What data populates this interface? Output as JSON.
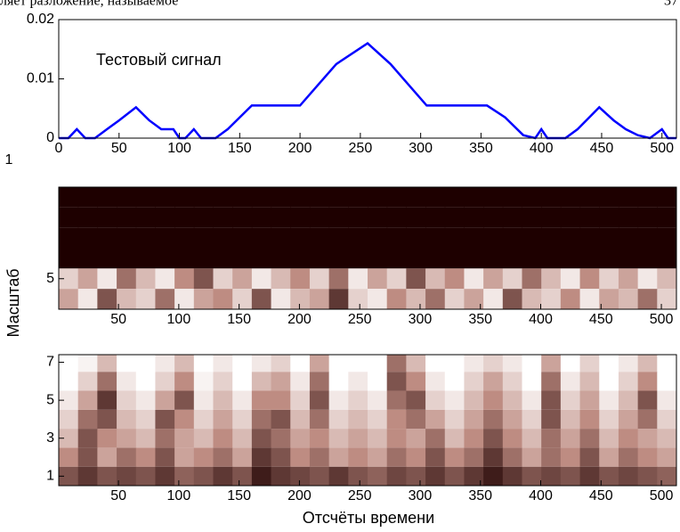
{
  "header": {
    "text": "ляет разложение, называемое",
    "page": "37"
  },
  "figure": {
    "ylabel": "Масштаб",
    "xlabel": "Отсчёты времени",
    "stray_label": "1"
  },
  "chart_data": [
    {
      "type": "line",
      "annotation": "Тестовый сигнал",
      "xlim": [
        0,
        512
      ],
      "ylim": [
        0,
        0.02
      ],
      "xticks": [
        0,
        50,
        100,
        150,
        200,
        250,
        300,
        350,
        400,
        450,
        500
      ],
      "yticks": [
        0,
        0.01,
        0.02
      ],
      "series": [
        {
          "color": "#0000ff",
          "x": [
            0,
            8,
            15,
            22,
            30,
            40,
            50,
            64,
            75,
            85,
            95,
            100,
            105,
            112,
            118,
            125,
            130,
            140,
            160,
            200,
            215,
            230,
            256,
            275,
            290,
            305,
            330,
            355,
            370,
            385,
            395,
            400,
            405,
            412,
            420,
            430,
            448,
            460,
            470,
            480,
            490,
            500,
            505,
            512
          ],
          "values": [
            0,
            0,
            0.0015,
            0,
            0,
            0.0015,
            0.003,
            0.0052,
            0.003,
            0.0015,
            0.0015,
            0,
            0,
            0.0015,
            0,
            0,
            0,
            0.0015,
            0.0055,
            0.0055,
            0.009,
            0.0125,
            0.016,
            0.0125,
            0.009,
            0.0055,
            0.0055,
            0.0055,
            0.0035,
            0.0005,
            0,
            0.0015,
            0,
            0,
            0,
            0.0015,
            0.0052,
            0.003,
            0.0015,
            0.0005,
            0,
            0.0015,
            0,
            0
          ]
        }
      ]
    },
    {
      "type": "heatmap",
      "xlim": [
        0.5,
        512.5
      ],
      "ylim": [
        0.5,
        6.5
      ],
      "y_reversed": true,
      "xticks": [
        50,
        100,
        150,
        200,
        250,
        300,
        350,
        400,
        450,
        500
      ],
      "yticks": [
        5
      ],
      "y": [
        1,
        2,
        3,
        4,
        5,
        6
      ],
      "z": [
        [
          0,
          0,
          0,
          0,
          0,
          0,
          0,
          0,
          0,
          0,
          0,
          0,
          0,
          0,
          0,
          0,
          0,
          0,
          0,
          0,
          0,
          0,
          0,
          0,
          0,
          0,
          0,
          0,
          0,
          0,
          0,
          0
        ],
        [
          0,
          0,
          0,
          0,
          0,
          0,
          0,
          0,
          0,
          0,
          0,
          0,
          0,
          0,
          0,
          0,
          0,
          0,
          0,
          0,
          0,
          0,
          0,
          0,
          0,
          0,
          0,
          0,
          0,
          0,
          0,
          0
        ],
        [
          0,
          0,
          0,
          0,
          0,
          0,
          0,
          0,
          0,
          0,
          0,
          0,
          0,
          0,
          0,
          0,
          0,
          0,
          0,
          0,
          0,
          0,
          0,
          0,
          0,
          0,
          0,
          0,
          0,
          0,
          0,
          0
        ],
        [
          0,
          0,
          0,
          0,
          0,
          0,
          0,
          0,
          0,
          0,
          0,
          0,
          0,
          0,
          0,
          0,
          0,
          0,
          0,
          0,
          0,
          0,
          0,
          0,
          0,
          0,
          0,
          0,
          0,
          0,
          0,
          0
        ],
        [
          0.8,
          0.6,
          0.9,
          0.4,
          0.7,
          0.9,
          0.5,
          0.3,
          0.8,
          0.6,
          0.9,
          0.7,
          0.5,
          0.8,
          0.4,
          0.9,
          0.6,
          0.8,
          0.3,
          0.7,
          0.5,
          0.9,
          0.6,
          0.8,
          0.4,
          0.7,
          0.9,
          0.5,
          0.8,
          0.6,
          0.9,
          0.7
        ],
        [
          0.6,
          0.9,
          0.3,
          0.7,
          0.8,
          0.4,
          0.9,
          0.6,
          0.5,
          0.8,
          0.3,
          0.9,
          0.7,
          0.6,
          0.2,
          0.8,
          0.9,
          0.5,
          0.7,
          0.4,
          0.8,
          0.6,
          0.9,
          0.3,
          0.7,
          0.8,
          0.5,
          0.9,
          0.6,
          0.7,
          0.4,
          0.8
        ]
      ]
    },
    {
      "type": "heatmap",
      "xlim": [
        0.5,
        512.5
      ],
      "ylim": [
        0.5,
        7.4
      ],
      "y_reversed": false,
      "xticks": [
        50,
        100,
        150,
        200,
        250,
        300,
        350,
        400,
        450,
        500
      ],
      "yticks": [
        1,
        3,
        5,
        7
      ],
      "y": [
        1,
        2,
        3,
        4,
        5,
        6,
        7
      ],
      "z": [
        [
          0.3,
          0.2,
          0.3,
          0.25,
          0.3,
          0.2,
          0.35,
          0.3,
          0.2,
          0.3,
          0.1,
          0.2,
          0.25,
          0.3,
          0.2,
          0.3,
          0.35,
          0.25,
          0.3,
          0.2,
          0.3,
          0.2,
          0.1,
          0.2,
          0.3,
          0.25,
          0.3,
          0.2,
          0.3,
          0.25,
          0.3,
          0.35
        ],
        [
          0.5,
          0.3,
          0.6,
          0.4,
          0.5,
          0.3,
          0.6,
          0.5,
          0.4,
          0.6,
          0.2,
          0.3,
          0.5,
          0.4,
          0.6,
          0.5,
          0.6,
          0.4,
          0.5,
          0.3,
          0.5,
          0.4,
          0.2,
          0.4,
          0.6,
          0.4,
          0.5,
          0.3,
          0.6,
          0.4,
          0.5,
          0.6
        ],
        [
          0.7,
          0.3,
          0.5,
          0.6,
          0.7,
          0.4,
          0.6,
          0.7,
          0.5,
          0.7,
          0.3,
          0.4,
          0.6,
          0.5,
          0.7,
          0.6,
          0.7,
          0.5,
          0.6,
          0.4,
          0.7,
          0.5,
          0.3,
          0.5,
          0.7,
          0.4,
          0.6,
          0.4,
          0.7,
          0.5,
          0.6,
          0.7
        ],
        [
          0.8,
          0.4,
          0.3,
          0.7,
          0.8,
          0.3,
          0.5,
          0.8,
          0.6,
          0.8,
          0.4,
          0.3,
          0.7,
          0.4,
          0.8,
          0.7,
          0.8,
          0.5,
          0.4,
          0.6,
          0.8,
          0.6,
          0.4,
          0.6,
          0.8,
          0.3,
          0.7,
          0.5,
          0.8,
          0.6,
          0.4,
          0.8
        ],
        [
          0.9,
          0.6,
          0.2,
          0.8,
          0.9,
          0.6,
          0.3,
          0.9,
          0.7,
          0.9,
          0.5,
          0.5,
          0.8,
          0.3,
          0.9,
          0.8,
          0.9,
          0.4,
          0.3,
          0.8,
          0.9,
          0.7,
          0.5,
          0.7,
          0.9,
          0.3,
          0.8,
          0.6,
          0.9,
          0.7,
          0.3,
          0.9
        ],
        [
          1,
          0.8,
          0.4,
          0.9,
          1,
          0.8,
          0.5,
          0.95,
          0.8,
          1,
          0.7,
          0.6,
          0.9,
          0.4,
          1,
          0.9,
          1,
          0.3,
          0.5,
          0.9,
          1,
          0.8,
          0.6,
          0.8,
          1,
          0.4,
          0.9,
          0.7,
          1,
          0.8,
          0.5,
          1
        ],
        [
          1,
          0.95,
          0.7,
          1,
          1,
          0.9,
          0.7,
          1,
          0.9,
          1,
          0.9,
          0.8,
          1,
          0.6,
          1,
          1,
          1,
          0.4,
          0.7,
          1,
          1,
          0.9,
          0.8,
          0.9,
          1,
          0.6,
          1,
          0.8,
          1,
          0.9,
          0.7,
          1
        ]
      ]
    }
  ]
}
